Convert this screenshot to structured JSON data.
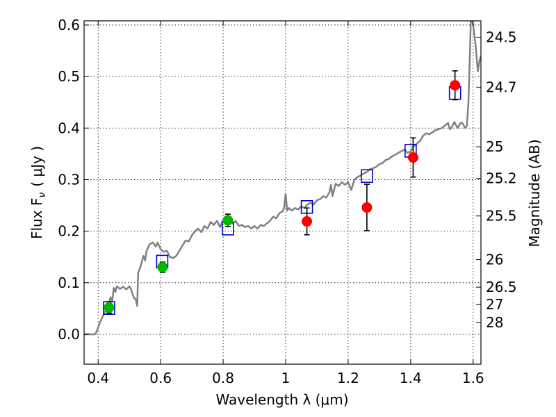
{
  "chart_data": {
    "type": "scatter",
    "xlabel": "Wavelength  λ (μm)",
    "ylabel": "Flux  F",
    "ylabel_subscript": "ν",
    "ylabel_unit": "( μJy )",
    "y2label": "Magnitude (AB)",
    "xlim": [
      0.355,
      1.625
    ],
    "ylim": [
      -0.058,
      0.608
    ],
    "x_ticks": [
      0.4,
      0.6,
      0.8,
      1.0,
      1.2,
      1.4,
      1.6
    ],
    "x_tick_labels": [
      "0.4",
      "0.6",
      "0.8",
      "1",
      "1.2",
      "1.4",
      "1.6"
    ],
    "y_ticks": [
      0.0,
      0.1,
      0.2,
      0.3,
      0.4,
      0.5,
      0.6
    ],
    "y_tick_labels": [
      "0.0",
      "0.1",
      "0.2",
      "0.3",
      "0.4",
      "0.5",
      "0.6"
    ],
    "y2_ticks": [
      {
        "label": "24.5",
        "flux": 0.5764
      },
      {
        "label": "24.7",
        "flux": 0.4794
      },
      {
        "label": "25",
        "flux": 0.3637
      },
      {
        "label": "25.2",
        "flux": 0.3025
      },
      {
        "label": "25.5",
        "flux": 0.2295
      },
      {
        "label": "26",
        "flux": 0.1448
      },
      {
        "label": "26.5",
        "flux": 0.0914
      },
      {
        "label": "27",
        "flux": 0.0577
      },
      {
        "label": "28",
        "flux": 0.0229
      }
    ],
    "grid": true,
    "series": [
      {
        "kind": "line",
        "color": "#808080",
        "points": [
          [
            0.355,
            0.0
          ],
          [
            0.39,
            0.0
          ],
          [
            0.395,
            0.005
          ],
          [
            0.405,
            0.022
          ],
          [
            0.415,
            0.035
          ],
          [
            0.425,
            0.048
          ],
          [
            0.435,
            0.062
          ],
          [
            0.44,
            0.072
          ],
          [
            0.445,
            0.065
          ],
          [
            0.45,
            0.09
          ],
          [
            0.455,
            0.082
          ],
          [
            0.46,
            0.093
          ],
          [
            0.47,
            0.088
          ],
          [
            0.48,
            0.092
          ],
          [
            0.49,
            0.087
          ],
          [
            0.5,
            0.093
          ],
          [
            0.505,
            0.088
          ],
          [
            0.51,
            0.078
          ],
          [
            0.515,
            0.07
          ],
          [
            0.52,
            0.068
          ],
          [
            0.525,
            0.055
          ],
          [
            0.528,
            0.12
          ],
          [
            0.535,
            0.13
          ],
          [
            0.545,
            0.152
          ],
          [
            0.55,
            0.143
          ],
          [
            0.555,
            0.162
          ],
          [
            0.565,
            0.175
          ],
          [
            0.575,
            0.178
          ],
          [
            0.585,
            0.17
          ],
          [
            0.59,
            0.178
          ],
          [
            0.6,
            0.165
          ],
          [
            0.61,
            0.16
          ],
          [
            0.62,
            0.162
          ],
          [
            0.63,
            0.15
          ],
          [
            0.64,
            0.148
          ],
          [
            0.65,
            0.152
          ],
          [
            0.66,
            0.162
          ],
          [
            0.67,
            0.172
          ],
          [
            0.68,
            0.182
          ],
          [
            0.69,
            0.18
          ],
          [
            0.7,
            0.192
          ],
          [
            0.71,
            0.2
          ],
          [
            0.72,
            0.205
          ],
          [
            0.73,
            0.198
          ],
          [
            0.74,
            0.21
          ],
          [
            0.75,
            0.205
          ],
          [
            0.76,
            0.218
          ],
          [
            0.77,
            0.212
          ],
          [
            0.78,
            0.22
          ],
          [
            0.79,
            0.208
          ],
          [
            0.8,
            0.222
          ],
          [
            0.81,
            0.218
          ],
          [
            0.82,
            0.225
          ],
          [
            0.83,
            0.215
          ],
          [
            0.84,
            0.22
          ],
          [
            0.85,
            0.21
          ],
          [
            0.86,
            0.212
          ],
          [
            0.87,
            0.208
          ],
          [
            0.88,
            0.21
          ],
          [
            0.89,
            0.205
          ],
          [
            0.9,
            0.21
          ],
          [
            0.91,
            0.205
          ],
          [
            0.92,
            0.212
          ],
          [
            0.93,
            0.21
          ],
          [
            0.94,
            0.215
          ],
          [
            0.95,
            0.22
          ],
          [
            0.96,
            0.228
          ],
          [
            0.97,
            0.225
          ],
          [
            0.98,
            0.235
          ],
          [
            0.99,
            0.238
          ],
          [
            0.995,
            0.245
          ],
          [
            1.0,
            0.272
          ],
          [
            1.005,
            0.24
          ],
          [
            1.01,
            0.245
          ],
          [
            1.02,
            0.24
          ],
          [
            1.03,
            0.245
          ],
          [
            1.04,
            0.242
          ],
          [
            1.05,
            0.248
          ],
          [
            1.06,
            0.245
          ],
          [
            1.07,
            0.252
          ],
          [
            1.08,
            0.255
          ],
          [
            1.09,
            0.252
          ],
          [
            1.1,
            0.26
          ],
          [
            1.11,
            0.262
          ],
          [
            1.12,
            0.268
          ],
          [
            1.13,
            0.265
          ],
          [
            1.14,
            0.275
          ],
          [
            1.145,
            0.29
          ],
          [
            1.15,
            0.268
          ],
          [
            1.16,
            0.292
          ],
          [
            1.17,
            0.288
          ],
          [
            1.18,
            0.295
          ],
          [
            1.19,
            0.29
          ],
          [
            1.2,
            0.295
          ],
          [
            1.21,
            0.28
          ],
          [
            1.22,
            0.3
          ],
          [
            1.23,
            0.305
          ],
          [
            1.24,
            0.308
          ],
          [
            1.25,
            0.312
          ],
          [
            1.26,
            0.315
          ],
          [
            1.27,
            0.32
          ],
          [
            1.28,
            0.322
          ],
          [
            1.29,
            0.325
          ],
          [
            1.3,
            0.33
          ],
          [
            1.31,
            0.332
          ],
          [
            1.32,
            0.338
          ],
          [
            1.33,
            0.34
          ],
          [
            1.34,
            0.345
          ],
          [
            1.35,
            0.348
          ],
          [
            1.36,
            0.352
          ],
          [
            1.37,
            0.355
          ],
          [
            1.38,
            0.358
          ],
          [
            1.39,
            0.352
          ],
          [
            1.4,
            0.355
          ],
          [
            1.41,
            0.365
          ],
          [
            1.42,
            0.37
          ],
          [
            1.43,
            0.375
          ],
          [
            1.44,
            0.385
          ],
          [
            1.45,
            0.39
          ],
          [
            1.46,
            0.388
          ],
          [
            1.47,
            0.392
          ],
          [
            1.48,
            0.396
          ],
          [
            1.49,
            0.398
          ],
          [
            1.5,
            0.4
          ],
          [
            1.51,
            0.405
          ],
          [
            1.52,
            0.41
          ],
          [
            1.525,
            0.398
          ],
          [
            1.53,
            0.4
          ],
          [
            1.54,
            0.412
          ],
          [
            1.55,
            0.4
          ],
          [
            1.56,
            0.41
          ],
          [
            1.565,
            0.41
          ],
          [
            1.57,
            0.405
          ],
          [
            1.575,
            0.4
          ],
          [
            1.58,
            0.405
          ],
          [
            1.585,
            0.45
          ],
          [
            1.59,
            0.55
          ],
          [
            1.593,
            0.62
          ],
          [
            1.6,
            0.6
          ],
          [
            1.608,
            0.56
          ],
          [
            1.615,
            0.51
          ],
          [
            1.62,
            0.53
          ],
          [
            1.625,
            0.54
          ]
        ]
      },
      {
        "kind": "model_squares",
        "color": "#0000cc",
        "points": [
          [
            0.435,
            0.051
          ],
          [
            0.605,
            0.141
          ],
          [
            0.815,
            0.205
          ],
          [
            1.068,
            0.247
          ],
          [
            1.26,
            0.307
          ],
          [
            1.4,
            0.356
          ],
          [
            1.542,
            0.468
          ]
        ]
      },
      {
        "kind": "points_errorbars",
        "color": "#00bb00",
        "points": [
          {
            "x": 0.435,
            "y": 0.052,
            "yerr": 0.011
          },
          {
            "x": 0.606,
            "y": 0.13,
            "yerr": 0.01
          },
          {
            "x": 0.815,
            "y": 0.221,
            "yerr": 0.012
          }
        ]
      },
      {
        "kind": "points_errorbars",
        "color": "#ff0000",
        "points": [
          {
            "x": 1.068,
            "y": 0.219,
            "yerr": 0.026
          },
          {
            "x": 1.26,
            "y": 0.246,
            "yerr": 0.045
          },
          {
            "x": 1.408,
            "y": 0.343,
            "yerr": 0.038
          },
          {
            "x": 1.542,
            "y": 0.483,
            "yerr": 0.028
          }
        ]
      }
    ]
  }
}
